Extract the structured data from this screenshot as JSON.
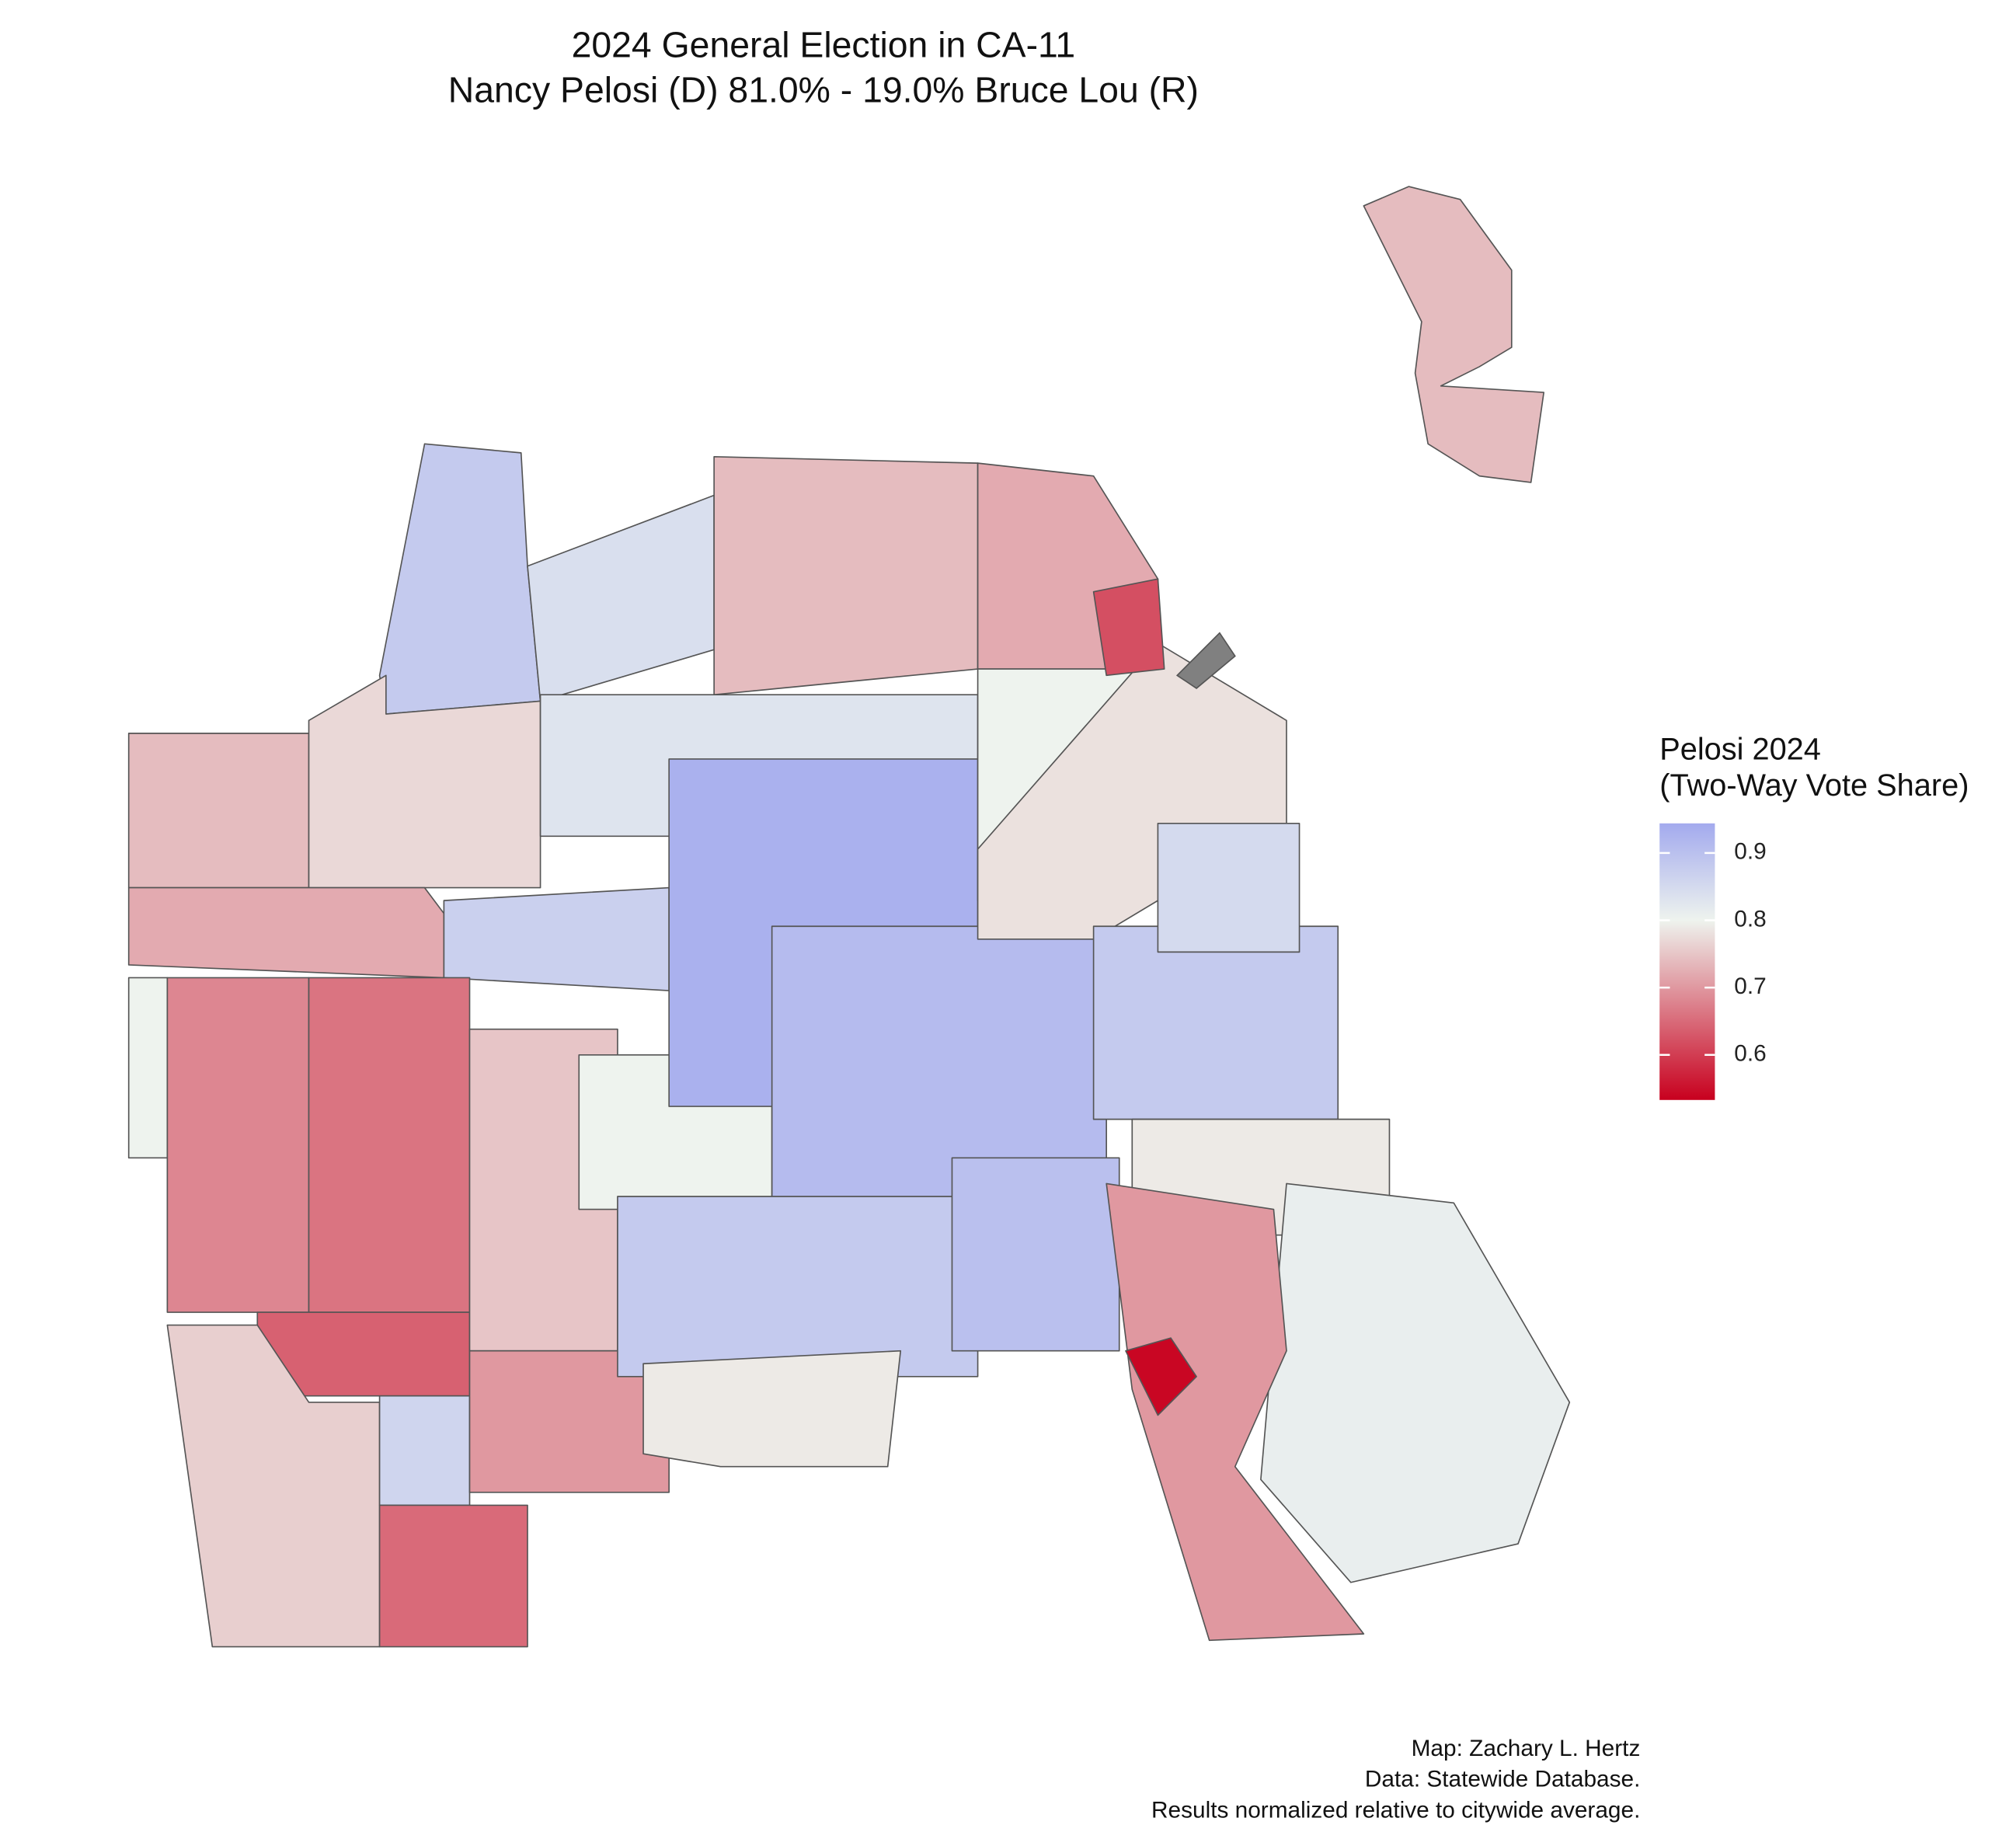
{
  "title_lines": [
    "2024 General Election in CA-11",
    "Nancy Pelosi (D) 81.0% - 19.0% Bruce Lou (R)"
  ],
  "legend": {
    "title_lines": [
      "Pelosi 2024",
      "(Two-Way Vote Share)"
    ],
    "lim": [
      0.533,
      0.944
    ],
    "ticks": [
      0.6,
      0.7,
      0.8,
      0.9
    ],
    "midpoint": 0.8,
    "low_color": "#c8001e",
    "mid_color": "#eef3ee",
    "high_color": "#a3aaee"
  },
  "precincts": {
    "values": [
      0.88,
      0.84,
      0.74,
      0.77,
      0.72,
      0.87,
      0.8,
      0.68,
      0.66,
      0.64,
      0.76,
      0.86,
      0.65,
      0.75,
      0.7,
      0.8,
      0.74,
      0.72,
      0.83,
      0.93,
      0.91,
      0.8,
      0.78,
      0.88,
      0.85,
      0.79,
      0.88,
      0.9,
      0.79,
      0.81,
      0.7,
      0.54,
      0.74,
      0.62
    ]
  },
  "caption": [
    "Map: Zachary L. Hertz",
    "Data: Statewide Database.",
    "Results normalized relative to citywide average."
  ]
}
